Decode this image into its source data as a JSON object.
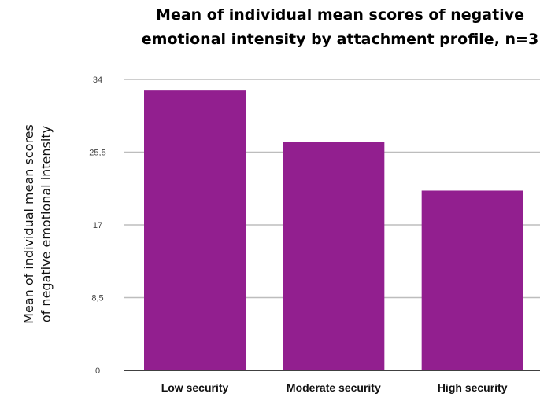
{
  "chart_data": {
    "type": "bar",
    "title_lines": [
      "Mean of individual mean scores of negative",
      "emotional intensity by attachment profile, n=3"
    ],
    "ylabel_lines": [
      "Mean of individual mean scores",
      "of negative emotional intensity"
    ],
    "xlabel": "",
    "categories": [
      "Low security",
      "Moderate security",
      "High security"
    ],
    "values": [
      32.7,
      26.7,
      21.0
    ],
    "ylim": [
      0,
      34
    ],
    "yticks": [
      0,
      8.5,
      17,
      25.5,
      34
    ],
    "ytick_labels": [
      "0",
      "8,5",
      "17",
      "25,5",
      "34"
    ],
    "grid": true,
    "bar_color": "#921F8F",
    "grid_color": "#BDBDBD",
    "axis_color": "#000000"
  }
}
